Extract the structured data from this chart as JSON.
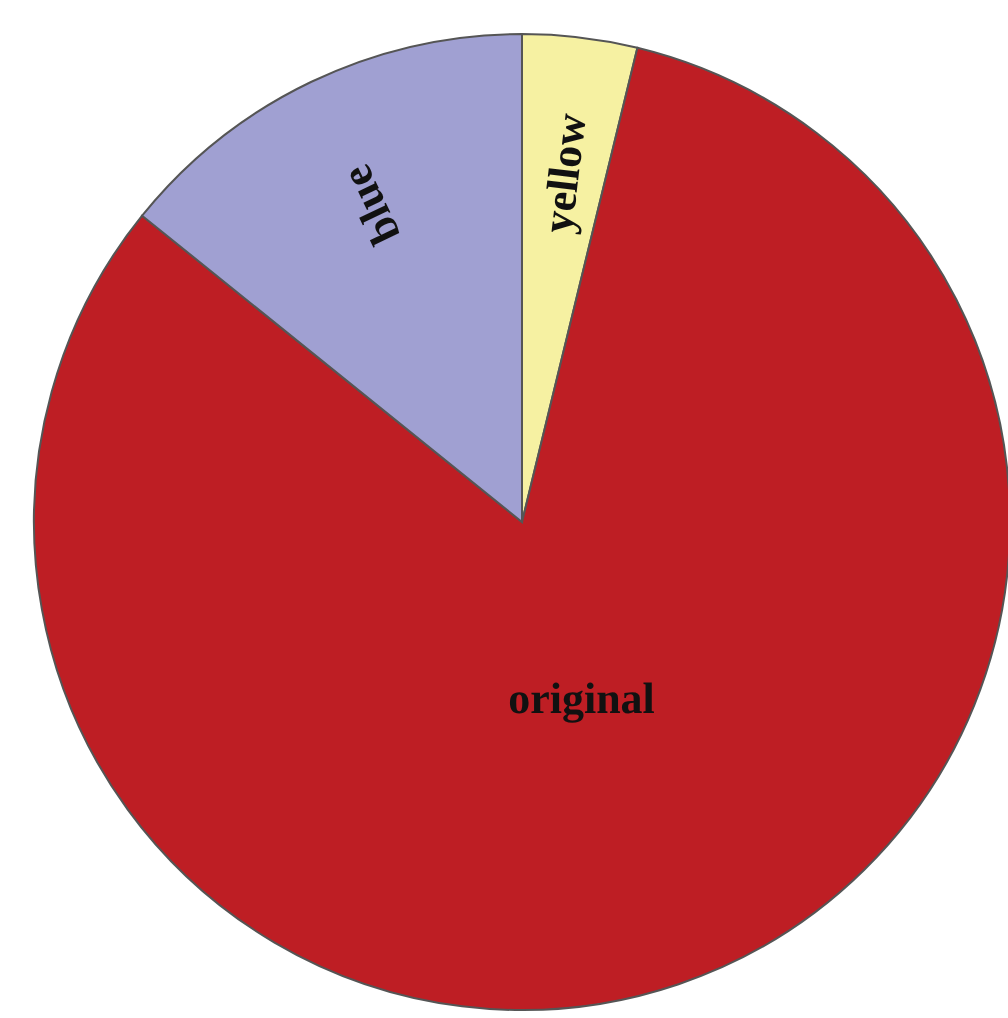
{
  "chart_data": {
    "type": "pie",
    "categories": [
      "yellow",
      "original",
      "blue"
    ],
    "values": [
      3.8,
      82,
      14.2
    ],
    "colors": [
      "#f6f1a2",
      "#be1e24",
      "#a0a0d2"
    ]
  }
}
